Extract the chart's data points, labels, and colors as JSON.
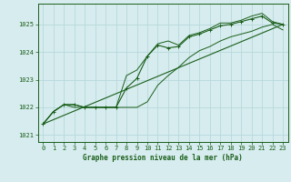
{
  "title": "Graphe pression niveau de la mer (hPa)",
  "background_color": "#d6ecee",
  "grid_color": "#b8d8dc",
  "line_color": "#1a5e1a",
  "xlim": [
    -0.5,
    23.5
  ],
  "ylim": [
    1020.75,
    1025.75
  ],
  "yticks": [
    1021,
    1022,
    1023,
    1024,
    1025
  ],
  "xticks": [
    0,
    1,
    2,
    3,
    4,
    5,
    6,
    7,
    8,
    9,
    10,
    11,
    12,
    13,
    14,
    15,
    16,
    17,
    18,
    19,
    20,
    21,
    22,
    23
  ],
  "hours": [
    0,
    1,
    2,
    3,
    4,
    5,
    6,
    7,
    8,
    9,
    10,
    11,
    12,
    13,
    14,
    15,
    16,
    17,
    18,
    19,
    20,
    21,
    22,
    23
  ],
  "pressure_main": [
    1021.4,
    1021.85,
    1022.1,
    1022.1,
    1022.0,
    1022.0,
    1022.0,
    1022.0,
    1022.7,
    1023.05,
    1023.85,
    1024.25,
    1024.15,
    1024.2,
    1024.55,
    1024.65,
    1024.8,
    1024.95,
    1025.0,
    1025.1,
    1025.2,
    1025.3,
    1025.05,
    1025.0
  ],
  "pressure_min": [
    1021.4,
    1021.85,
    1022.1,
    1022.0,
    1022.0,
    1022.0,
    1022.0,
    1022.0,
    1022.0,
    1022.0,
    1022.2,
    1022.8,
    1023.15,
    1023.45,
    1023.8,
    1024.05,
    1024.2,
    1024.4,
    1024.55,
    1024.65,
    1024.75,
    1024.9,
    1025.0,
    1024.8
  ],
  "pressure_max": [
    1021.4,
    1021.85,
    1022.1,
    1022.1,
    1022.0,
    1022.0,
    1022.0,
    1022.0,
    1023.15,
    1023.35,
    1023.85,
    1024.3,
    1024.4,
    1024.25,
    1024.6,
    1024.7,
    1024.85,
    1025.05,
    1025.05,
    1025.15,
    1025.3,
    1025.4,
    1025.1,
    1025.0
  ],
  "trend_x": [
    0,
    23
  ],
  "trend_y": [
    1021.4,
    1025.0
  ]
}
